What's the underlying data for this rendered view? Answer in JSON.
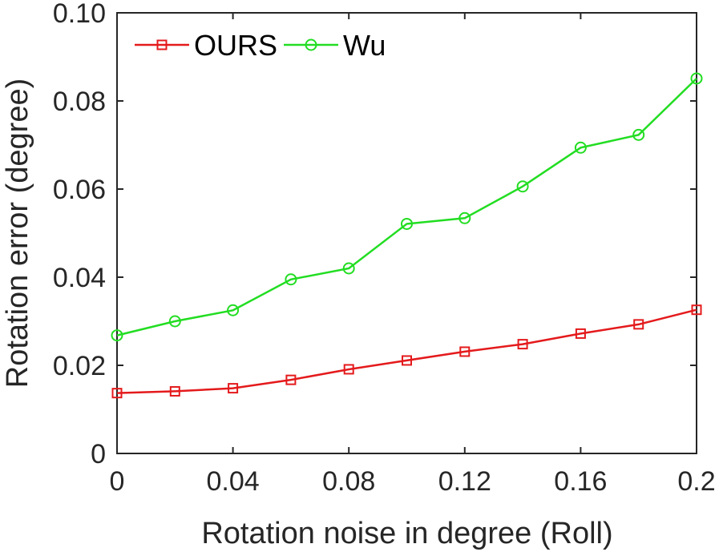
{
  "chart_data": {
    "type": "line",
    "xlabel": "Rotation noise in degree (Roll)",
    "ylabel": "Rotation error (degree)",
    "xlim": [
      0,
      0.2
    ],
    "ylim": [
      0,
      0.1
    ],
    "x_ticks": [
      "0",
      "0.04",
      "0.08",
      "0.12",
      "0.16",
      "0.2"
    ],
    "y_ticks": [
      "0",
      "0.02",
      "0.04",
      "0.06",
      "0.08",
      "0.10"
    ],
    "grid": false,
    "legend_position": "top-left",
    "x": [
      0,
      0.02,
      0.04,
      0.06,
      0.08,
      0.1,
      0.12,
      0.14,
      0.16,
      0.18,
      0.2
    ],
    "series": [
      {
        "name": "OURS",
        "color": "#e41a1c",
        "marker": "square",
        "values": [
          0.0137,
          0.0141,
          0.0148,
          0.0167,
          0.0191,
          0.0211,
          0.0231,
          0.0248,
          0.0272,
          0.0293,
          0.0326
        ]
      },
      {
        "name": "Wu",
        "color": "#22dd22",
        "marker": "circle",
        "values": [
          0.0268,
          0.03,
          0.0325,
          0.0395,
          0.042,
          0.0521,
          0.0534,
          0.0606,
          0.0694,
          0.0723,
          0.0851
        ]
      }
    ]
  }
}
